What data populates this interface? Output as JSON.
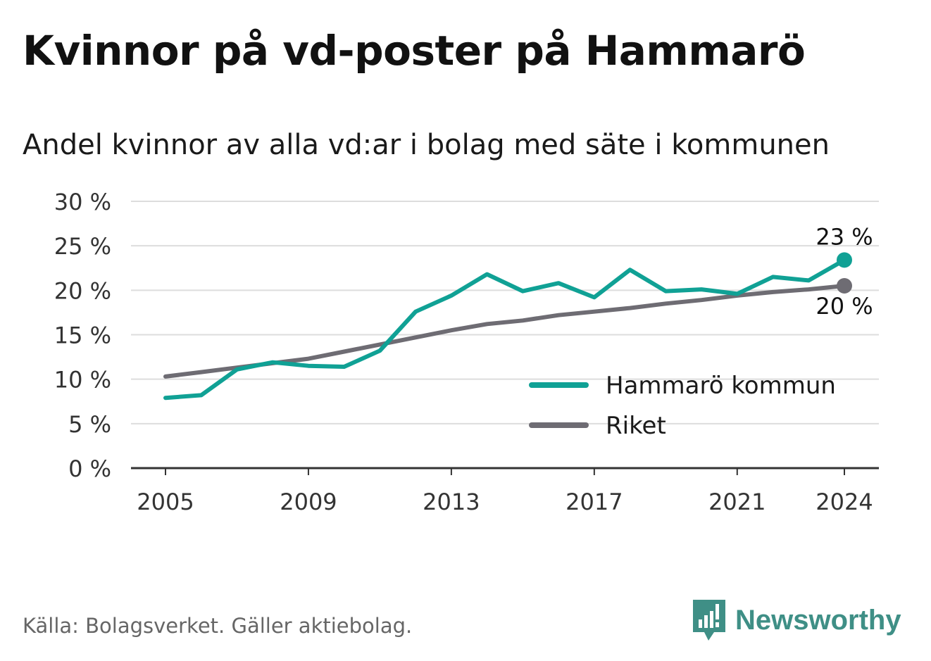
{
  "title": "Kvinnor på vd-poster på Hammarö",
  "subtitle": "Andel kvinnor av alla vd:ar i bolag med säte i kommunen",
  "source": "Källa: Bolagsverket. Gäller aktiebolag.",
  "brand": "Newsworthy",
  "colors": {
    "hammaro": "#10a195",
    "riket": "#6e6c73",
    "grid": "#dddddd",
    "axis": "#333333",
    "brand": "#3f8f86"
  },
  "chart_data": {
    "type": "line",
    "x": [
      2005,
      2006,
      2007,
      2008,
      2009,
      2010,
      2011,
      2012,
      2013,
      2014,
      2015,
      2016,
      2017,
      2018,
      2019,
      2020,
      2021,
      2022,
      2023,
      2024
    ],
    "series": [
      {
        "name": "Hammarö kommun",
        "color": "#10a195",
        "values": [
          7.9,
          8.2,
          11.1,
          11.9,
          11.5,
          11.4,
          13.2,
          17.6,
          19.4,
          21.8,
          19.9,
          20.8,
          19.2,
          22.3,
          19.9,
          20.1,
          19.6,
          21.5,
          21.1,
          23.4
        ],
        "end_label": "23 %"
      },
      {
        "name": "Riket",
        "color": "#6e6c73",
        "values": [
          10.3,
          10.8,
          11.3,
          11.8,
          12.3,
          13.1,
          13.9,
          14.7,
          15.5,
          16.2,
          16.6,
          17.2,
          17.6,
          18.0,
          18.5,
          18.9,
          19.4,
          19.8,
          20.1,
          20.5
        ],
        "end_label": "20 %"
      }
    ],
    "yticks": [
      0,
      5,
      10,
      15,
      20,
      25,
      30
    ],
    "ytick_labels": [
      "0 %",
      "5 %",
      "10 %",
      "15 %",
      "20 %",
      "25 %",
      "30 %"
    ],
    "xticks": [
      2005,
      2009,
      2013,
      2017,
      2021,
      2024
    ],
    "xtick_labels": [
      "2005",
      "2009",
      "2013",
      "2017",
      "2021",
      "2024"
    ],
    "ylim": [
      0,
      30
    ],
    "xlim": [
      2005,
      2024
    ],
    "grid": true,
    "legend": "bottom-right"
  }
}
